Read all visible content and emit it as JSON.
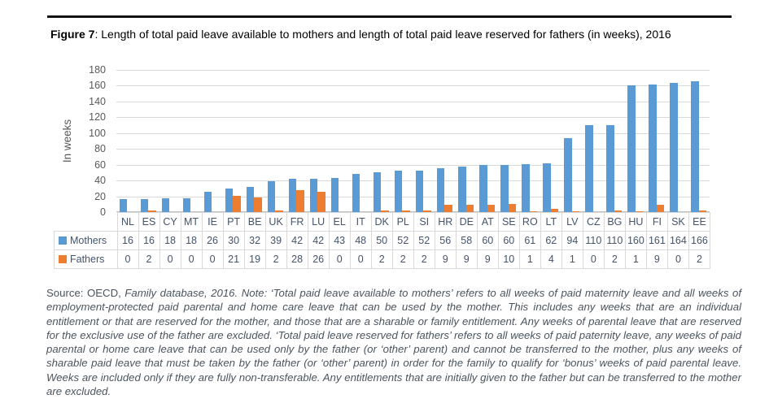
{
  "figure": {
    "label": "Figure 7",
    "title_rest": ": Length of total paid leave available to mothers and length of total paid leave reserved for fathers (in weeks), 2016"
  },
  "chart_data": {
    "type": "bar",
    "title": "",
    "xlabel": "",
    "ylabel": "In weeks",
    "ylim": [
      0,
      180
    ],
    "ytick_step": 20,
    "grid": true,
    "legend_position": "row-labels-left-of-data-table",
    "categories": [
      "NL",
      "ES",
      "CY",
      "MT",
      "IE",
      "PT",
      "BE",
      "UK",
      "FR",
      "LU",
      "EL",
      "IT",
      "DK",
      "PL",
      "SI",
      "HR",
      "DE",
      "AT",
      "SE",
      "RO",
      "LT",
      "LV",
      "CZ",
      "BG",
      "HU",
      "FI",
      "SK",
      "EE"
    ],
    "series": [
      {
        "name": "Mothers",
        "color": "#5B9BD5",
        "values": [
          16,
          16,
          18,
          18,
          26,
          30,
          32,
          39,
          42,
          42,
          43,
          48,
          50,
          52,
          52,
          56,
          58,
          60,
          60,
          61,
          62,
          94,
          110,
          110,
          160,
          161,
          164,
          166
        ]
      },
      {
        "name": "Fathers",
        "color": "#ED7D31",
        "values": [
          0,
          2,
          0,
          0,
          0,
          21,
          19,
          2,
          28,
          26,
          0,
          0,
          2,
          2,
          2,
          9,
          9,
          9,
          10,
          1,
          4,
          1,
          0,
          2,
          1,
          9,
          0,
          2
        ]
      }
    ]
  },
  "palette": {
    "mothers": "#5B9BD5",
    "fathers": "#ED7D31",
    "gridline": "#D9D9D9",
    "axis_text": "#595959",
    "table_text": "#44546A"
  },
  "source_note": {
    "prefix": "Source: OECD,",
    "body": " Family database, 2016. Note: ‘Total paid leave available to mothers’ refers to all weeks of paid maternity leave and all weeks of employment-protected paid parental and home care leave that can be used by the mother. This includes any weeks that are an individual entitlement or that are reserved for the mother, and those that are a sharable or family entitlement. Any weeks of parental leave that are reserved for the exclusive use of the father are excluded. ‘Total paid leave reserved for fathers’ refers to all weeks of paid paternity leave, any weeks of paid parental or home care leave that can be used only by the father (or ‘other’ parent) and cannot be transferred to the mother, plus any weeks of sharable paid leave that must be taken by the father (or ‘other’ parent) in order for the family to qualify for ‘bonus’ weeks of paid parental leave. Weeks are included only if they are fully non-transferable. Any entitlements that are initially given to the father but can be transferred to the mother are excluded."
  }
}
